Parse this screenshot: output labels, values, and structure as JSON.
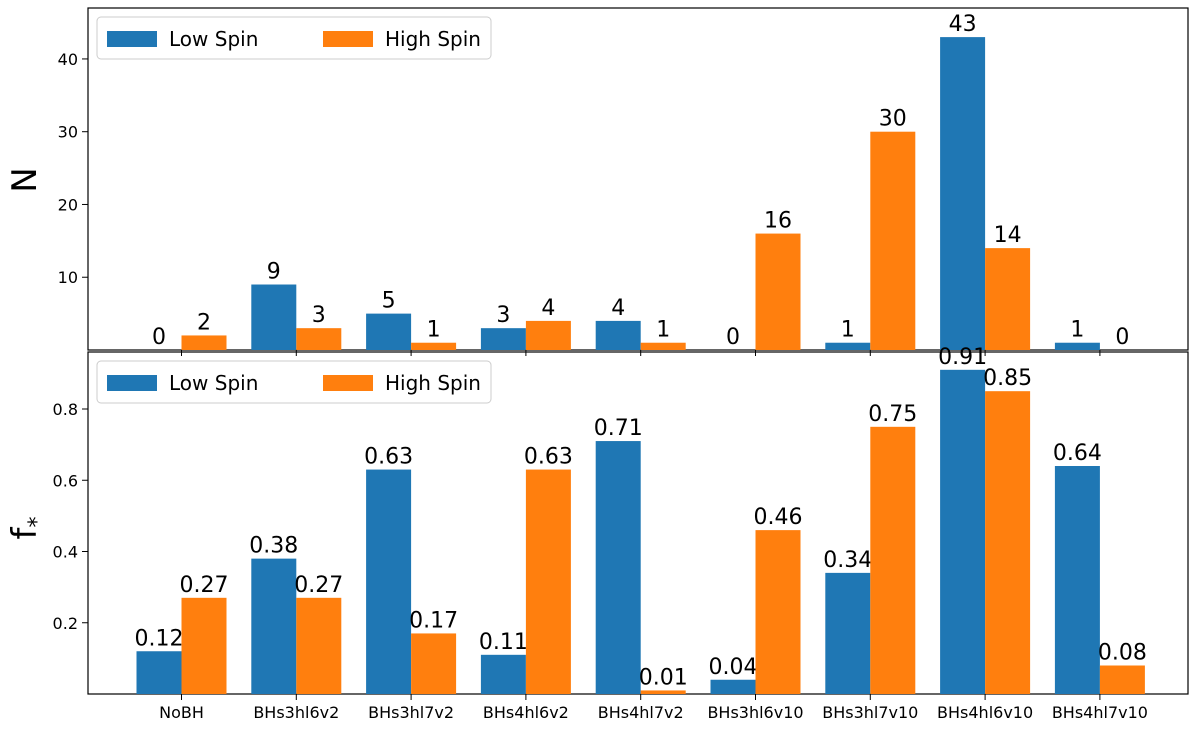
{
  "chart_data": [
    {
      "type": "bar",
      "panel": "top",
      "title": "",
      "xlabel": "",
      "ylabel": "N",
      "categories": [
        "NoBH",
        "BHs3hl6v2",
        "BHs3hl7v2",
        "BHs4hl6v2",
        "BHs4hl7v2",
        "BHs3hl6v10",
        "BHs3hl7v10",
        "BHs4hl6v10",
        "BHs4hl7v10"
      ],
      "series": [
        {
          "name": "Low Spin",
          "color": "#1f77b4",
          "values": [
            0,
            9,
            5,
            3,
            4,
            0,
            1,
            43,
            1
          ],
          "labels": [
            "0",
            "9",
            "5",
            "3",
            "4",
            "0",
            "1",
            "43",
            "1"
          ]
        },
        {
          "name": "High Spin",
          "color": "#ff7f0e",
          "values": [
            2,
            3,
            1,
            4,
            1,
            16,
            30,
            14,
            0
          ],
          "labels": [
            "2",
            "3",
            "1",
            "4",
            "1",
            "16",
            "30",
            "14",
            "0"
          ]
        }
      ],
      "ylim": [
        0,
        47
      ],
      "yticks": [
        10,
        20,
        30,
        40
      ],
      "show_category_labels": false,
      "legend": "top-left"
    },
    {
      "type": "bar",
      "panel": "bottom",
      "title": "",
      "xlabel": "",
      "ylabel": "f",
      "ylabel_sub": "*",
      "categories": [
        "NoBH",
        "BHs3hl6v2",
        "BHs3hl7v2",
        "BHs4hl6v2",
        "BHs4hl7v2",
        "BHs3hl6v10",
        "BHs3hl7v10",
        "BHs4hl6v10",
        "BHs4hl7v10"
      ],
      "series": [
        {
          "name": "Low Spin",
          "color": "#1f77b4",
          "values": [
            0.12,
            0.38,
            0.63,
            0.11,
            0.71,
            0.04,
            0.34,
            0.91,
            0.64
          ],
          "labels": [
            "0.12",
            "0.38",
            "0.63",
            "0.11",
            "0.71",
            "0.04",
            "0.34",
            "0.91",
            "0.64"
          ]
        },
        {
          "name": "High Spin",
          "color": "#ff7f0e",
          "values": [
            0.27,
            0.27,
            0.17,
            0.63,
            0.01,
            0.46,
            0.75,
            0.85,
            0.08
          ],
          "labels": [
            "0.27",
            "0.27",
            "0.17",
            "0.63",
            "0.01",
            "0.46",
            "0.75",
            "0.85",
            "0.08"
          ]
        }
      ],
      "ylim": [
        0,
        0.96
      ],
      "yticks": [
        0.2,
        0.4,
        0.6,
        0.8
      ],
      "ytick_labels": [
        "0.2",
        "0.4",
        "0.6",
        "0.8"
      ],
      "show_category_labels": true,
      "legend": "top-left"
    }
  ]
}
